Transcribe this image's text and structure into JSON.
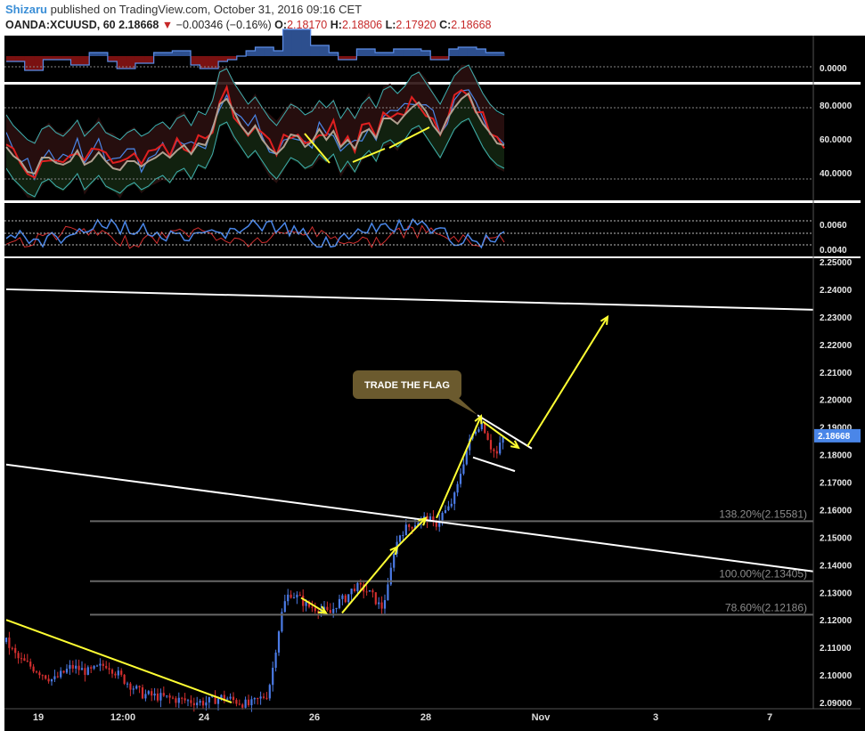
{
  "header": {
    "author": "Shizaru",
    "published_text": "published on TradingView.com, October 31, 2016 09:16 CET",
    "symbol": "OANDA:XCUUSD, 60",
    "last": "2.18668",
    "change": "−0.00346 (−0.16%)",
    "o_label": "O:",
    "o_value": "2.18170",
    "h_label": "H:",
    "h_value": "2.18806",
    "l_label": "L:",
    "l_value": "2.17920",
    "c_label": "C:",
    "c_value": "2.18668",
    "down_arrow": "▼"
  },
  "colors": {
    "background": "#000000",
    "up_candle": "#4b7be6",
    "down_candle": "#d32f2f",
    "trendline": "#ffffff",
    "yellow": "#ffff33",
    "fib_line": "#666666",
    "price_tag": "#4a86e8",
    "callout": "#6b5a2e"
  },
  "chart_data": [
    {
      "type": "line",
      "panel": "indicator-1",
      "ylabels": [
        "0.0000"
      ]
    },
    {
      "type": "line",
      "panel": "indicator-2",
      "ylabels": [
        "80.0000",
        "60.0000",
        "40.0000"
      ]
    },
    {
      "type": "line",
      "panel": "indicator-3",
      "ylabels": [
        "0.0060",
        "0.0040"
      ]
    },
    {
      "type": "candlestick",
      "panel": "price",
      "ylim": [
        2.09,
        2.25
      ],
      "yticks": [
        "2.25000",
        "2.24000",
        "2.23000",
        "2.22000",
        "2.21000",
        "2.20000",
        "2.19000",
        "2.18000",
        "2.17000",
        "2.16000",
        "2.15000",
        "2.14000",
        "2.13000",
        "2.12000",
        "2.11000",
        "2.10000",
        "2.09000"
      ],
      "xticks": [
        "19",
        "12:00",
        "24",
        "26",
        "28",
        "Nov",
        "3",
        "7"
      ],
      "last_price": "2.18668",
      "fib_levels": [
        {
          "label": "138.20%(2.15581)",
          "value": 2.15581
        },
        {
          "label": "100.00%(2.13405)",
          "value": 2.13405
        },
        {
          "label": "78.60%(2.12186)",
          "value": 2.12186
        }
      ],
      "annotation": "TRADE THE FLAG"
    }
  ]
}
